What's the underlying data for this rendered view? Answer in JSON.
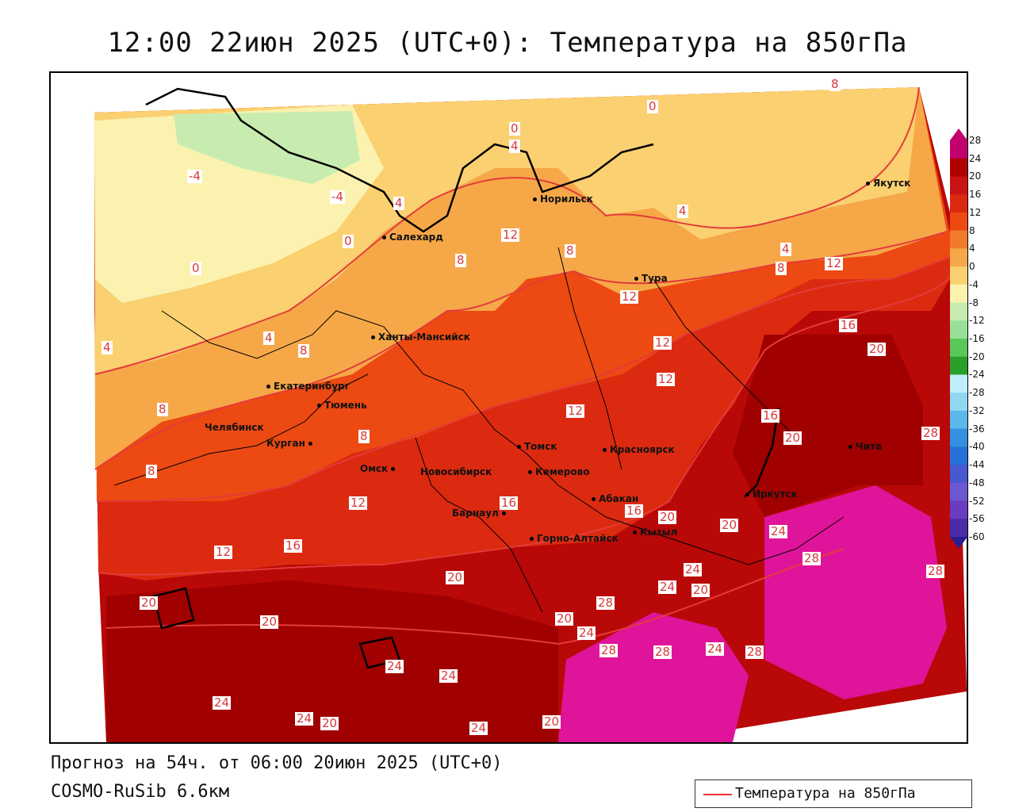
{
  "title": "12:00 22июн 2025 (UTC+0): Температура на 850гПа",
  "footer": {
    "forecast": "Прогноз на 54ч. от 06:00 20июн 2025 (UTC+0)",
    "model": "COSMO-RuSib 6.6км"
  },
  "legend": {
    "label": "Температура на 850гПа",
    "line_color": "#e33b3b"
  },
  "scale": {
    "ticks": [
      "28",
      "24",
      "20",
      "16",
      "12",
      "8",
      "4",
      "0",
      "-4",
      "-8",
      "-12",
      "-16",
      "-20",
      "-24",
      "-28",
      "-32",
      "-36",
      "-40",
      "-44",
      "-48",
      "-52",
      "-56",
      "-60"
    ],
    "colors": [
      "#c2006e",
      "#b00000",
      "#c81414",
      "#dc2a10",
      "#ec4a12",
      "#f27a2c",
      "#f6a848",
      "#fad070",
      "#fbf2b0",
      "#c8ecb0",
      "#98e098",
      "#58c858",
      "#2aa02a",
      "#c0eef8",
      "#90d8f0",
      "#5cb8ec",
      "#3490e0",
      "#2870d8",
      "#4858d0",
      "#6c58d0",
      "#6a3cc0",
      "#4a2ca8",
      "#2a1c90"
    ]
  },
  "cities": [
    {
      "name": "Салехард"
    },
    {
      "name": "Норильск"
    },
    {
      "name": "Якутск"
    },
    {
      "name": "Тура"
    },
    {
      "name": "Ханты-Мансийск"
    },
    {
      "name": "Екатеринбург"
    },
    {
      "name": "Тюмень"
    },
    {
      "name": "Челябинск"
    },
    {
      "name": "Курган"
    },
    {
      "name": "Омск"
    },
    {
      "name": "Новосибирск"
    },
    {
      "name": "Томск"
    },
    {
      "name": "Кемерово"
    },
    {
      "name": "Красноярск"
    },
    {
      "name": "Барнаул"
    },
    {
      "name": "Абакан"
    },
    {
      "name": "Горно-Алтайск"
    },
    {
      "name": "Кызыл"
    },
    {
      "name": "Иркутск"
    },
    {
      "name": "Чита"
    }
  ],
  "isolabels": [
    "-4",
    "-4",
    "0",
    "0",
    "0",
    "0",
    "4",
    "4",
    "4",
    "4",
    "4",
    "4",
    "8",
    "8",
    "8",
    "8",
    "8",
    "8",
    "8",
    "8",
    "12",
    "12",
    "12",
    "12",
    "12",
    "12",
    "12",
    "12",
    "16",
    "16",
    "16",
    "16",
    "16",
    "20",
    "20",
    "20",
    "20",
    "20",
    "20",
    "20",
    "20",
    "20",
    "20",
    "20",
    "24",
    "24",
    "24",
    "24",
    "24",
    "24",
    "24",
    "24",
    "24",
    "24",
    "28",
    "28",
    "28",
    "28",
    "28",
    "28",
    "28"
  ],
  "regions": [
    "tundra-green",
    "cool-yellow",
    "mild-orange",
    "warm-red-orange",
    "hot-red",
    "very-hot-magenta"
  ]
}
